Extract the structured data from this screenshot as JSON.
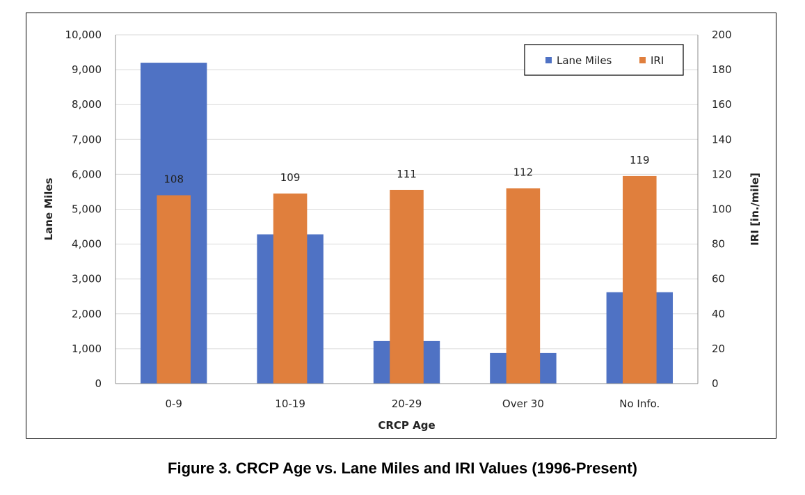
{
  "caption": "Figure 3. CRCP Age vs. Lane Miles and IRI Values (1996-Present)",
  "chart_data": {
    "type": "bar",
    "title": "",
    "categories": [
      "0-9",
      "10-19",
      "20-29",
      "Over 30",
      "No Info."
    ],
    "xlabel": "CRCP Age",
    "ylabel": "Lane Miles",
    "y2label": "IRI [in./mile]",
    "ylim": [
      0,
      10000
    ],
    "y2lim": [
      0,
      200
    ],
    "yticks": [
      "0",
      "1,000",
      "2,000",
      "3,000",
      "4,000",
      "5,000",
      "6,000",
      "7,000",
      "8,000",
      "9,000",
      "10,000"
    ],
    "y2ticks": [
      "0",
      "20",
      "40",
      "60",
      "80",
      "100",
      "120",
      "140",
      "160",
      "180",
      "200"
    ],
    "grid": true,
    "legend_position": "top-right",
    "series": [
      {
        "name": "Lane Miles",
        "axis": "left",
        "color": "#4f72c4",
        "values": [
          9200,
          4280,
          1220,
          880,
          2620
        ]
      },
      {
        "name": "IRI",
        "axis": "right",
        "color": "#e07f3d",
        "values": [
          108,
          109,
          111,
          112,
          119
        ],
        "data_labels": [
          "108",
          "109",
          "111",
          "112",
          "119"
        ]
      }
    ]
  }
}
